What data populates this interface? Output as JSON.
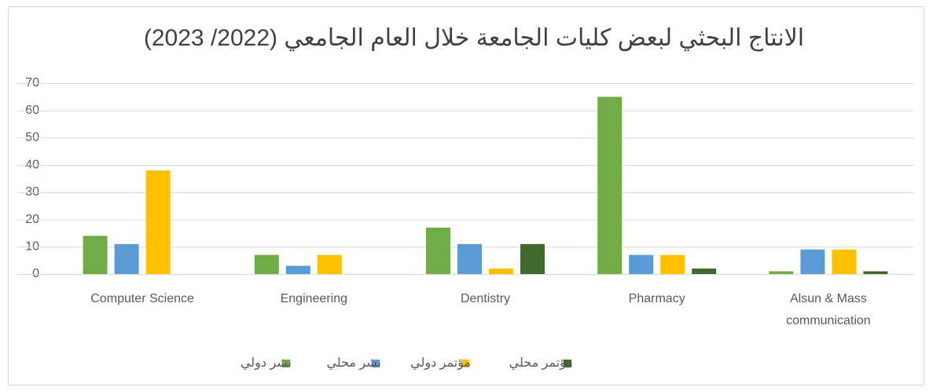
{
  "chart_data": {
    "type": "bar",
    "title": "الانتاج البحثي لبعض كليات الجامعة خلال العام الجامعي (2022/ 2023)",
    "categories": [
      "Computer Science",
      "Engineering",
      "Dentistry",
      "Pharmacy",
      "Alsun & Mass communication"
    ],
    "series": [
      {
        "name": "نشر دولي",
        "color": "#70ad47",
        "values": [
          14,
          7,
          17,
          65,
          1
        ]
      },
      {
        "name": "نشر محلي",
        "color": "#5b9bd5",
        "values": [
          11,
          3,
          11,
          7,
          9
        ]
      },
      {
        "name": "مؤتمر دولي",
        "color": "#ffc000",
        "values": [
          38,
          7,
          2,
          7,
          9
        ]
      },
      {
        "name": "مؤتمر محلي",
        "color": "#43682b",
        "values": [
          0,
          0,
          11,
          2,
          1
        ]
      }
    ],
    "ylim": [
      0,
      70
    ],
    "yticks": [
      0,
      10,
      20,
      30,
      40,
      50,
      60,
      70
    ],
    "grid": true,
    "legend": "bottom"
  }
}
